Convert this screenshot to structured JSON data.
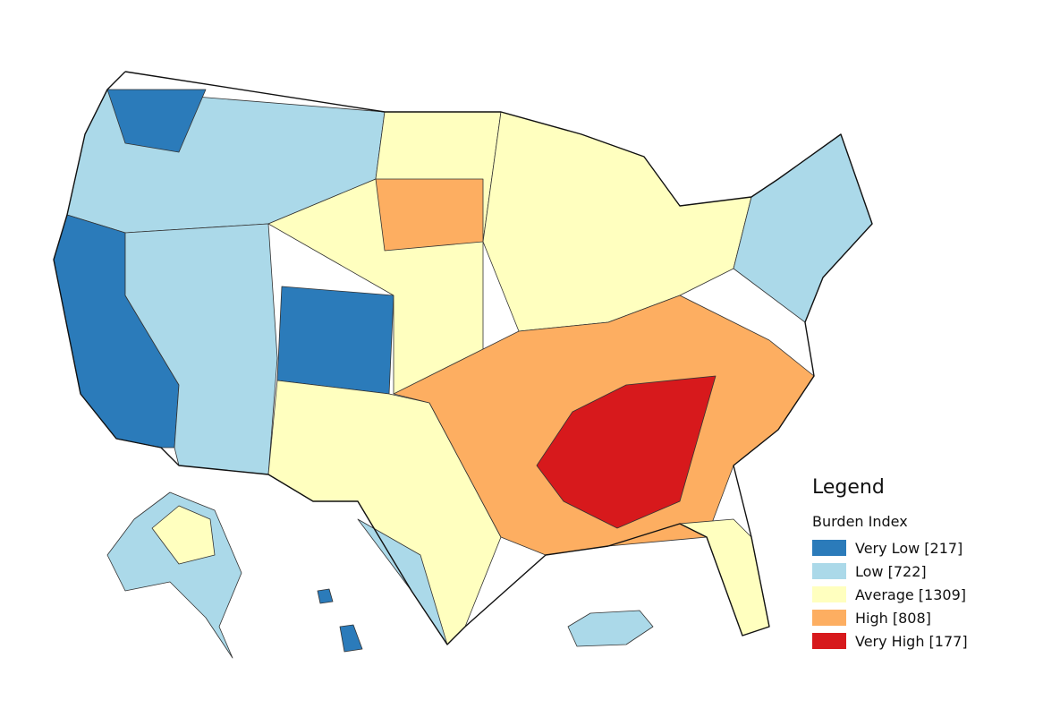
{
  "legend": {
    "title": "Legend",
    "subtitle": "Burden Index",
    "items": [
      {
        "label": "Very Low [217]",
        "color": "#2b7bba"
      },
      {
        "label": "Low [722]",
        "color": "#abd9e9"
      },
      {
        "label": "Average [1309]",
        "color": "#ffffbf"
      },
      {
        "label": "High [808]",
        "color": "#fdae61"
      },
      {
        "label": "Very High [177]",
        "color": "#d7191c"
      }
    ]
  }
}
